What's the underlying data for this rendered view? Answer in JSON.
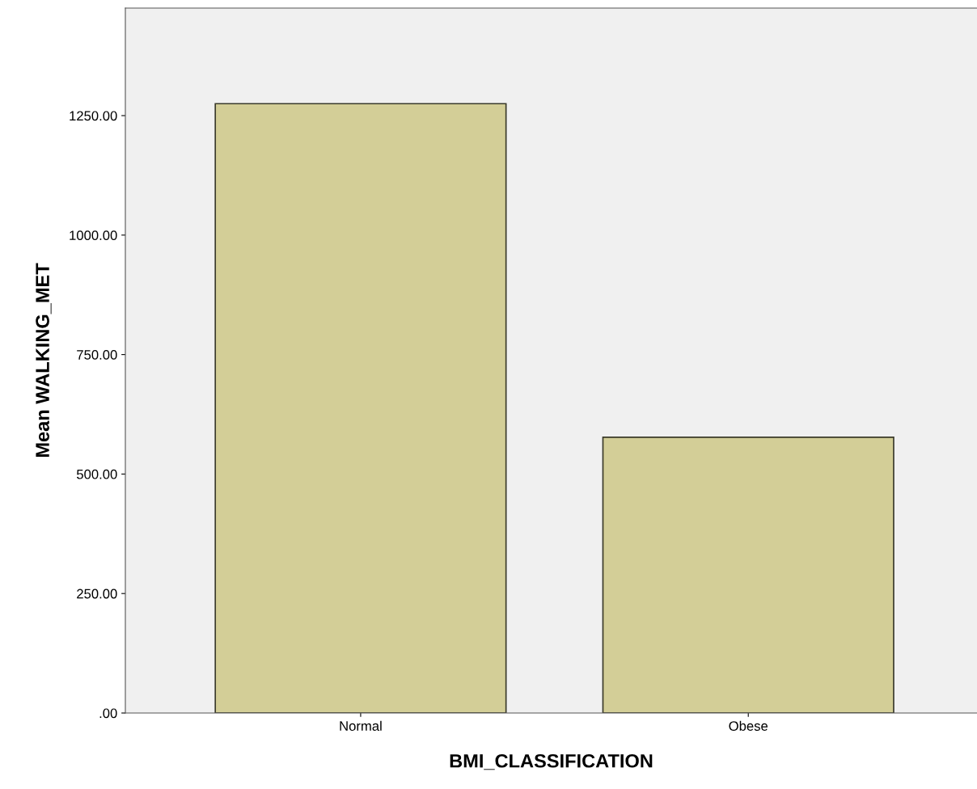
{
  "chart_data": {
    "type": "bar",
    "xlabel": "BMI_CLASSIFICATION",
    "ylabel": "Mean WALKING_MET",
    "categories": [
      "Normal",
      "Obese"
    ],
    "values": [
      1275,
      577
    ],
    "color": "#d3ce97",
    "ylim": [
      0,
      1475
    ],
    "yticks": [
      {
        "value": 0,
        "label": ".00"
      },
      {
        "value": 250,
        "label": "250.00"
      },
      {
        "value": 500,
        "label": "500.00"
      },
      {
        "value": 750,
        "label": "750.00"
      },
      {
        "value": 1000,
        "label": "1000.00"
      },
      {
        "value": 1250,
        "label": "1250.00"
      }
    ],
    "grid": false
  }
}
